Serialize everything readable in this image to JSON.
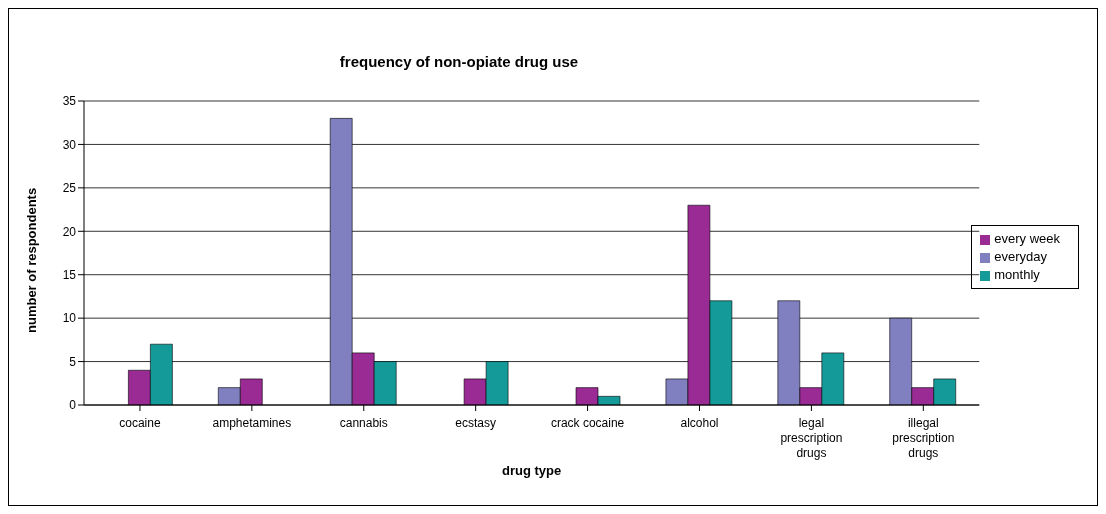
{
  "chart_data": {
    "type": "bar",
    "title": "frequency of non-opiate drug use",
    "xlabel": "drug type",
    "ylabel": "number of respondents",
    "categories": [
      "cocaine",
      "amphetamines",
      "cannabis",
      "ecstasy",
      "crack cocaine",
      "alcohol",
      "legal prescription drugs",
      "illegal prescription drugs"
    ],
    "series": [
      {
        "name": "everyday",
        "color": "#8080c0",
        "values": [
          0,
          2,
          33,
          0,
          0,
          3,
          12,
          10
        ]
      },
      {
        "name": "every week",
        "color": "#9a2a94",
        "values": [
          4,
          3,
          6,
          3,
          2,
          23,
          2,
          2
        ]
      },
      {
        "name": "monthly",
        "color": "#159a9a",
        "values": [
          7,
          0,
          5,
          5,
          1,
          12,
          6,
          3
        ]
      }
    ],
    "ylim": [
      0,
      35
    ],
    "yticks": [
      0,
      5,
      10,
      15,
      20,
      25,
      30,
      35
    ],
    "grid": "y",
    "legend": "right"
  }
}
